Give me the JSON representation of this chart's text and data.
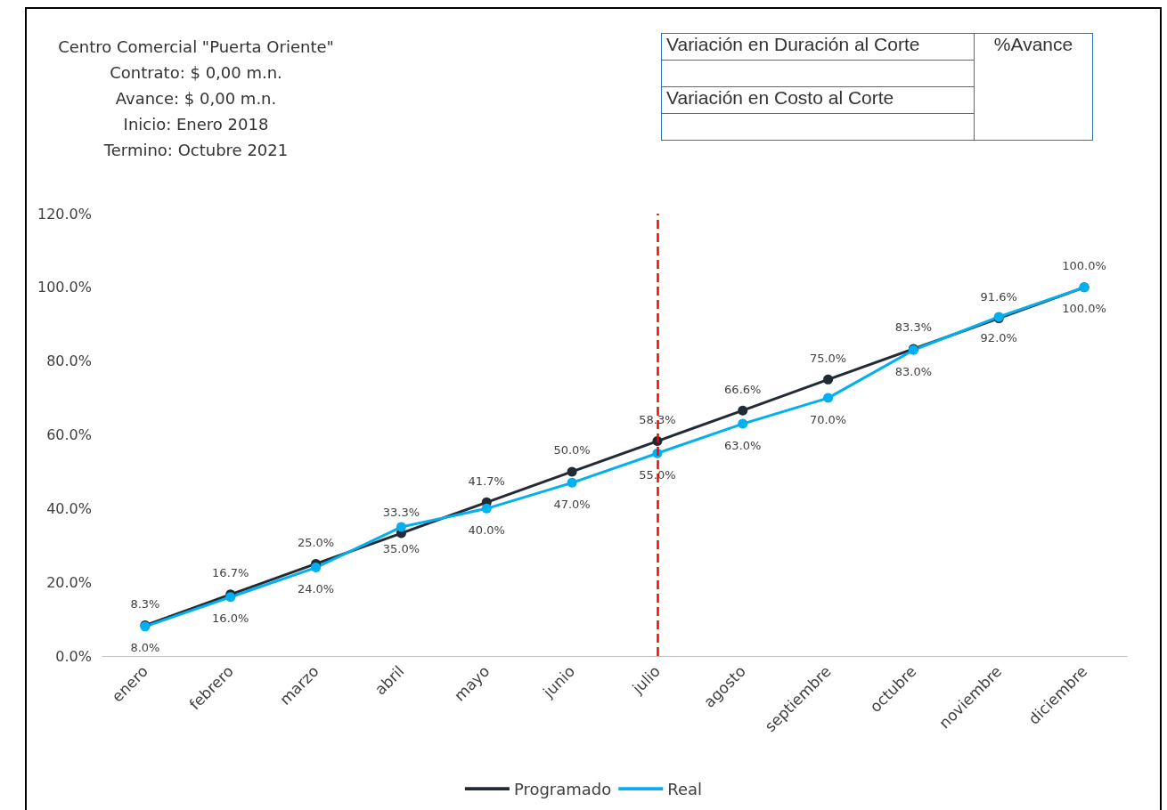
{
  "chart_data": {
    "type": "line",
    "title": "Centro Comercial \"Puerta Oriente\"",
    "annotations": [
      "Contrato: $ 0,00 m.n.",
      "Avance:   $ 0,00 m.n.",
      "Inicio:  Enero 2018",
      "Termino:  Octubre 2021",
      "Variación en Duración al Corte",
      "%Avance",
      "Variación en Costo al Corte"
    ],
    "categories": [
      "enero",
      "febrero",
      "marzo",
      "abril",
      "mayo",
      "junio",
      "julio",
      "agosto",
      "septiembre",
      "octubre",
      "noviembre",
      "diciembre"
    ],
    "series": [
      {
        "name": "Programado",
        "color": "#222a35",
        "values": [
          8.3,
          16.7,
          25.0,
          33.3,
          41.7,
          50.0,
          58.3,
          66.6,
          75.0,
          83.3,
          91.6,
          100.0
        ],
        "value_labels": [
          "8.3%",
          "16.7%",
          "25.0%",
          "33.3%",
          "41.7%",
          "50.0%",
          "58.3%",
          "66.6%",
          "75.0%",
          "83.3%",
          "91.6%",
          "100.0%"
        ]
      },
      {
        "name": "Real",
        "color": "#00b0f0",
        "values": [
          8.0,
          16.0,
          24.0,
          35.0,
          40.0,
          47.0,
          55.0,
          63.0,
          70.0,
          83.0,
          92.0,
          100.0
        ],
        "value_labels": [
          "8.0%",
          "16.0%",
          "24.0%",
          "35.0%",
          "40.0%",
          "47.0%",
          "55.0%",
          "63.0%",
          "70.0%",
          "83.0%",
          "92.0%",
          "100.0%"
        ]
      }
    ],
    "ylim": [
      0,
      120
    ],
    "yticks": [
      {
        "value": 0,
        "label": "0.0%"
      },
      {
        "value": 20,
        "label": "20.0%"
      },
      {
        "value": 40,
        "label": "40.0%"
      },
      {
        "value": 60,
        "label": "60.0%"
      },
      {
        "value": 80,
        "label": "80.0%"
      },
      {
        "value": 100,
        "label": "100.0%"
      },
      {
        "value": 120,
        "label": "120.0%"
      }
    ],
    "ref_lines": [
      {
        "axis": "x",
        "value": "julio",
        "color": "#ff0000",
        "line_style": "dashed"
      }
    ],
    "grid": false,
    "legend": "bottom",
    "marker": "circle",
    "line_style": "solid"
  }
}
